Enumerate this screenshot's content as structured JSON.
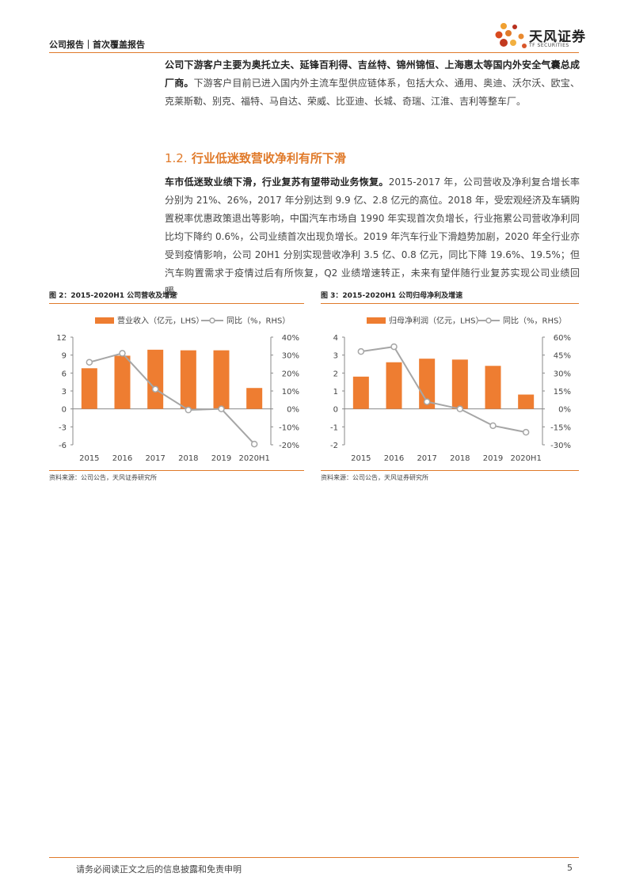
{
  "header": {
    "left": "公司报告｜首次覆盖报告",
    "logo_text": "天风证券",
    "logo_sub": "TF SECURITIES"
  },
  "para1": {
    "bold": "公司下游客户主要为奥托立夫、延锋百利得、吉丝特、锦州锦恒、上海惠太等国内外安全气囊总成厂商。",
    "text": "下游客户目前已进入国内外主流车型供应链体系，包括大众、通用、奥迪、沃尔沃、欧宝、克莱斯勒、别克、福特、马自达、荣威、比亚迪、长城、奇瑞、江淮、吉利等整车厂。"
  },
  "section": {
    "number": "1.2.",
    "title": "行业低迷致营收净利有所下滑"
  },
  "para2": {
    "bold": "车市低迷致业绩下滑，行业复苏有望带动业务恢复。",
    "text": "2015-2017 年，公司营收及净利复合增长率分别为 21%、26%，2017 年分别达到 9.9 亿、2.8 亿元的高位。2018 年，受宏观经济及车辆购置税率优惠政策退出等影响，中国汽车市场自 1990 年实现首次负增长，行业拖累公司营收净利同比均下降约 0.6%，公司业绩首次出现负增长。2019 年汽车行业下滑趋势加剧，2020 年全行业亦受到疫情影响，公司 20H1 分别实现营收净利 3.5 亿、0.8 亿元，同比下降 19.6%、19.5%；但汽车购置需求于疫情过后有所恢复，Q2 业绩增速转正，未来有望伴随行业复苏实现公司业绩回暖。"
  },
  "figures": [
    {
      "title": "图 2：2015-2020H1 公司营收及增速",
      "source": "资料来源：公司公告，天风证券研究所"
    },
    {
      "title": "图 3：2015-2020H1 公司归母净利及增速",
      "source": "资料来源：公司公告，天风证券研究所"
    }
  ],
  "chart_data": [
    {
      "type": "bar",
      "categories": [
        "2015",
        "2016",
        "2017",
        "2018",
        "2019",
        "2020H1"
      ],
      "series": [
        {
          "name": "营业收入（亿元，LHS）",
          "type": "bar",
          "axis": "left",
          "values": [
            6.8,
            8.9,
            9.9,
            9.8,
            9.8,
            3.5
          ]
        },
        {
          "name": "同比（%，RHS）",
          "type": "line",
          "axis": "right",
          "values": [
            26,
            31,
            11,
            -0.6,
            0,
            -19.6
          ]
        }
      ],
      "ylim_left": [
        -6,
        12
      ],
      "yticks_left": [
        "12",
        "9",
        "6",
        "3",
        "0",
        "-3",
        "-6"
      ],
      "ylim_right": [
        -20,
        40
      ],
      "yticks_right": [
        "40%",
        "30%",
        "20%",
        "10%",
        "0%",
        "-10%",
        "-20%"
      ],
      "colors": {
        "bar": "#ee7d31",
        "line": "#a6a6a6"
      },
      "grid": false,
      "legend": "top"
    },
    {
      "type": "bar",
      "categories": [
        "2015",
        "2016",
        "2017",
        "2018",
        "2019",
        "2020H1"
      ],
      "series": [
        {
          "name": "归母净利润（亿元，LHS）",
          "type": "bar",
          "axis": "left",
          "values": [
            1.8,
            2.6,
            2.8,
            2.75,
            2.4,
            0.8
          ]
        },
        {
          "name": "同比（%，RHS）",
          "type": "line",
          "axis": "right",
          "values": [
            48,
            52,
            6,
            0,
            -14,
            -19.5
          ]
        }
      ],
      "ylim_left": [
        -2,
        4
      ],
      "yticks_left": [
        "4",
        "3",
        "2",
        "1",
        "0",
        "-1",
        "-2"
      ],
      "ylim_right": [
        -30,
        60
      ],
      "yticks_right": [
        "60%",
        "45%",
        "30%",
        "15%",
        "0%",
        "-15%",
        "-30%"
      ],
      "colors": {
        "bar": "#ee7d31",
        "line": "#a6a6a6"
      },
      "grid": false,
      "legend": "top"
    }
  ],
  "footer": {
    "disclaimer": "请务必阅读正文之后的信息披露和免责申明",
    "page": "5"
  }
}
